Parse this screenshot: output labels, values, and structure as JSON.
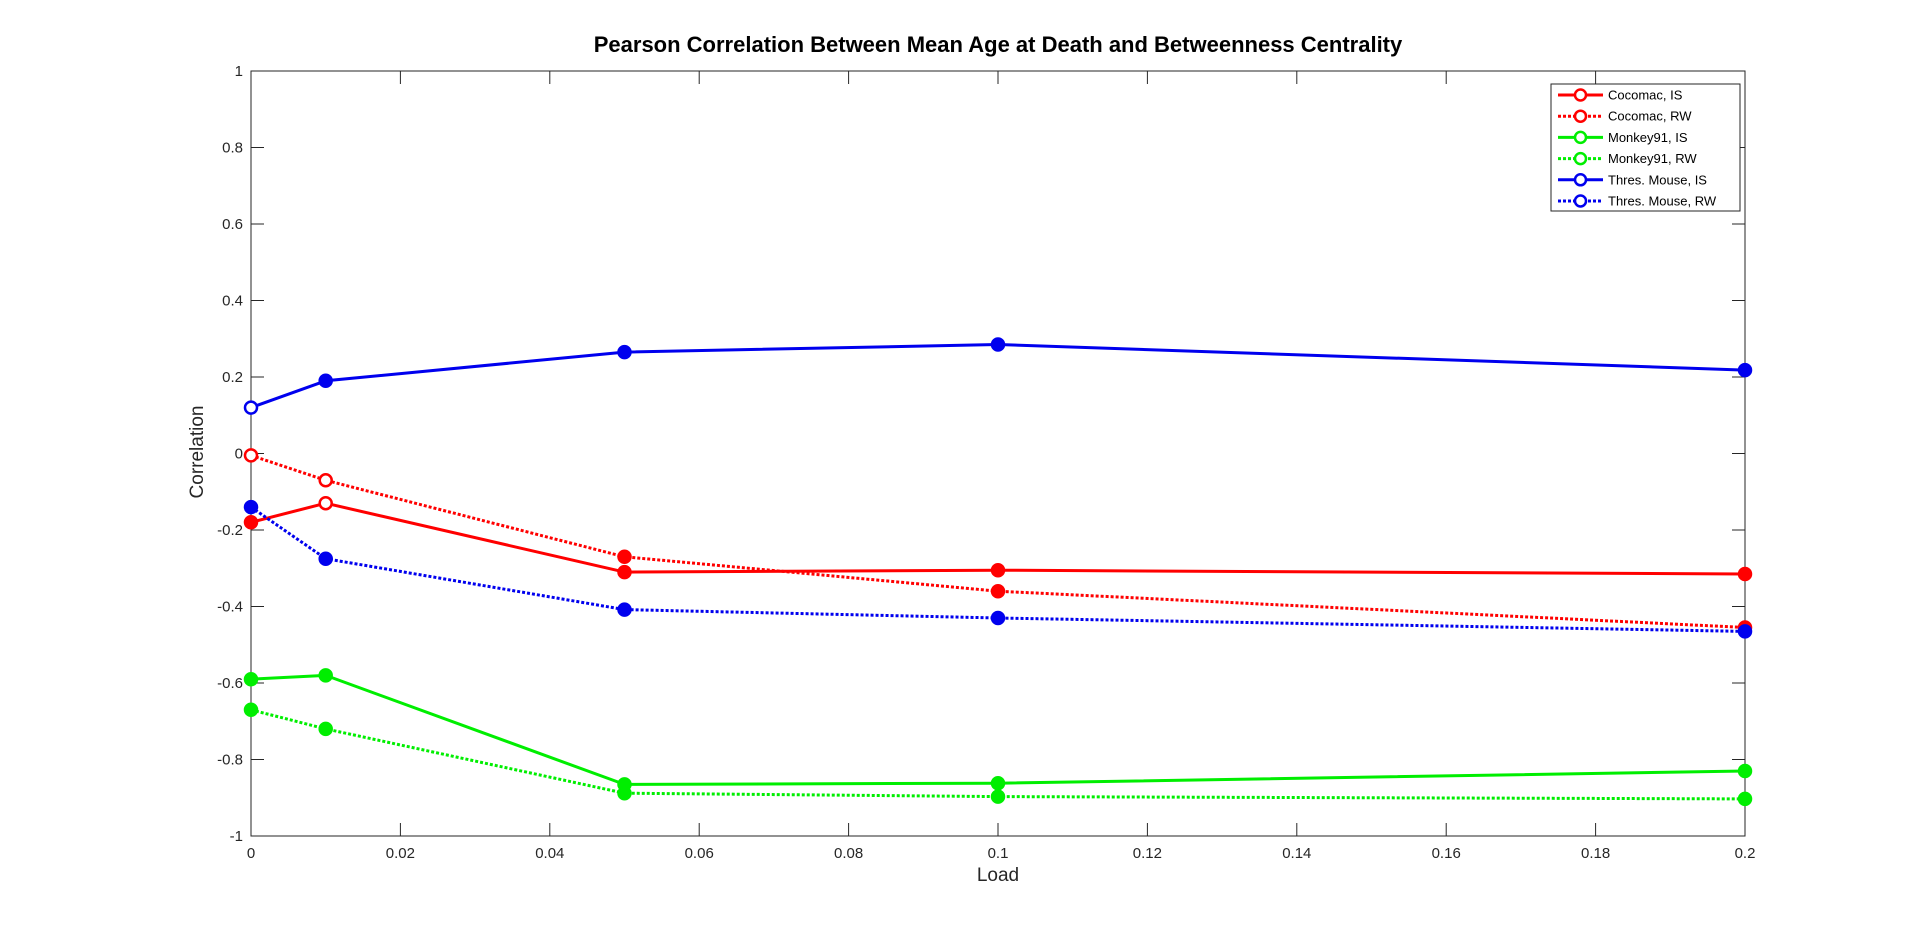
{
  "chart_data": {
    "type": "line",
    "title": "Pearson Correlation Between Mean Age at Death and Betweenness Centrality",
    "xlabel": "Load",
    "ylabel": "Correlation",
    "xlim": [
      0,
      0.2
    ],
    "ylim": [
      -1,
      1
    ],
    "x_ticks": [
      0,
      0.02,
      0.04,
      0.06,
      0.08,
      0.1,
      0.12,
      0.14,
      0.16,
      0.18,
      0.2
    ],
    "x_tick_labels": [
      "0",
      "0.02",
      "0.04",
      "0.06",
      "0.08",
      "0.1",
      "0.12",
      "0.14",
      "0.16",
      "0.18",
      "0.2"
    ],
    "y_ticks": [
      -1,
      -0.8,
      -0.6,
      -0.4,
      -0.2,
      0,
      0.2,
      0.4,
      0.6,
      0.8,
      1
    ],
    "y_tick_labels": [
      "-1",
      "-0.8",
      "-0.6",
      "-0.4",
      "-0.2",
      "0",
      "0.2",
      "0.4",
      "0.6",
      "0.8",
      "1"
    ],
    "grid": false,
    "legend_position": "top-right",
    "x": [
      0,
      0.01,
      0.05,
      0.1,
      0.2
    ],
    "series": [
      {
        "name": "Cocomac, IS",
        "color": "#ff0000",
        "dashed": false,
        "values": [
          -0.18,
          -0.13,
          -0.31,
          -0.305,
          -0.315
        ],
        "filled": [
          true,
          false,
          true,
          true,
          true
        ]
      },
      {
        "name": "Cocomac, RW",
        "color": "#ff0000",
        "dashed": true,
        "values": [
          -0.005,
          -0.07,
          -0.27,
          -0.36,
          -0.455
        ],
        "filled": [
          false,
          false,
          true,
          true,
          true
        ]
      },
      {
        "name": "Monkey91, IS",
        "color": "#00ee00",
        "dashed": false,
        "values": [
          -0.59,
          -0.58,
          -0.865,
          -0.862,
          -0.83
        ],
        "filled": [
          true,
          true,
          true,
          true,
          true
        ]
      },
      {
        "name": "Monkey91, RW",
        "color": "#00ee00",
        "dashed": true,
        "values": [
          -0.67,
          -0.72,
          -0.888,
          -0.897,
          -0.903
        ],
        "filled": [
          true,
          true,
          true,
          true,
          true
        ]
      },
      {
        "name": "Thres. Mouse, IS",
        "color": "#0000ee",
        "dashed": false,
        "values": [
          0.12,
          0.19,
          0.265,
          0.285,
          0.218
        ],
        "filled": [
          false,
          true,
          true,
          true,
          true
        ]
      },
      {
        "name": "Thres. Mouse, RW",
        "color": "#0000ee",
        "dashed": true,
        "values": [
          -0.14,
          -0.275,
          -0.408,
          -0.43,
          -0.465
        ],
        "filled": [
          true,
          true,
          true,
          true,
          true
        ]
      }
    ]
  }
}
